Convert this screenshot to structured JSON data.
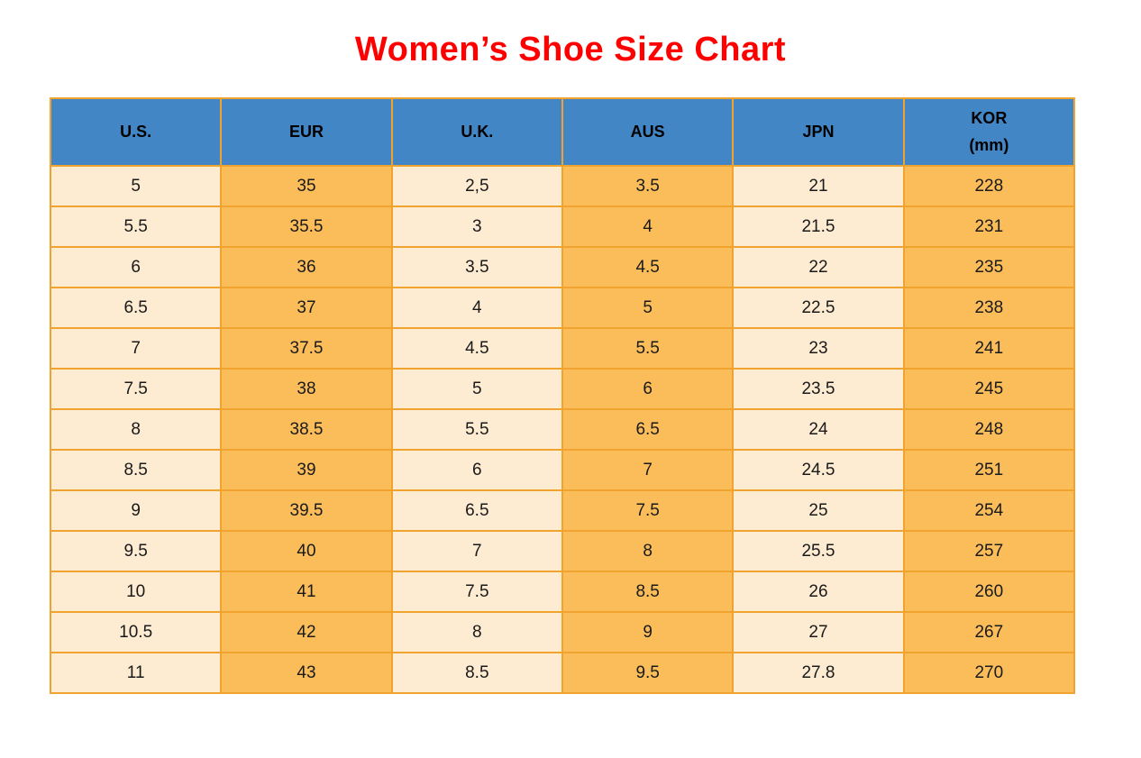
{
  "header": {
    "title": "Women’s Shoe Size Chart"
  },
  "colors": {
    "title": "#ff0000",
    "header_bg": "#4286c6",
    "cell_light": "#fdebd2",
    "cell_dark": "#fbbd59",
    "border": "#f0a42f",
    "text": "#1a1a1a"
  },
  "chart_data": {
    "type": "table",
    "title": "Women’s Shoe Size Chart",
    "columns": [
      {
        "key": "us",
        "label": "U.S."
      },
      {
        "key": "eur",
        "label": "EUR"
      },
      {
        "key": "uk",
        "label": "U.K."
      },
      {
        "key": "aus",
        "label": "AUS"
      },
      {
        "key": "jpn",
        "label": "JPN"
      },
      {
        "key": "kor",
        "label": "KOR",
        "sublabel": "(mm)"
      }
    ],
    "column_shading": [
      "light",
      "dark",
      "light",
      "dark",
      "light",
      "dark"
    ],
    "rows": [
      [
        "5",
        "35",
        "2,5",
        "3.5",
        "21",
        "228"
      ],
      [
        "5.5",
        "35.5",
        "3",
        "4",
        "21.5",
        "231"
      ],
      [
        "6",
        "36",
        "3.5",
        "4.5",
        "22",
        "235"
      ],
      [
        "6.5",
        "37",
        "4",
        "5",
        "22.5",
        "238"
      ],
      [
        "7",
        "37.5",
        "4.5",
        "5.5",
        "23",
        "241"
      ],
      [
        "7.5",
        "38",
        "5",
        "6",
        "23.5",
        "245"
      ],
      [
        "8",
        "38.5",
        "5.5",
        "6.5",
        "24",
        "248"
      ],
      [
        "8.5",
        "39",
        "6",
        "7",
        "24.5",
        "251"
      ],
      [
        "9",
        "39.5",
        "6.5",
        "7.5",
        "25",
        "254"
      ],
      [
        "9.5",
        "40",
        "7",
        "8",
        "25.5",
        "257"
      ],
      [
        "10",
        "41",
        "7.5",
        "8.5",
        "26",
        "260"
      ],
      [
        "10.5",
        "42",
        "8",
        "9",
        "27",
        "267"
      ],
      [
        "11",
        "43",
        "8.5",
        "9.5",
        "27.8",
        "270"
      ]
    ]
  }
}
